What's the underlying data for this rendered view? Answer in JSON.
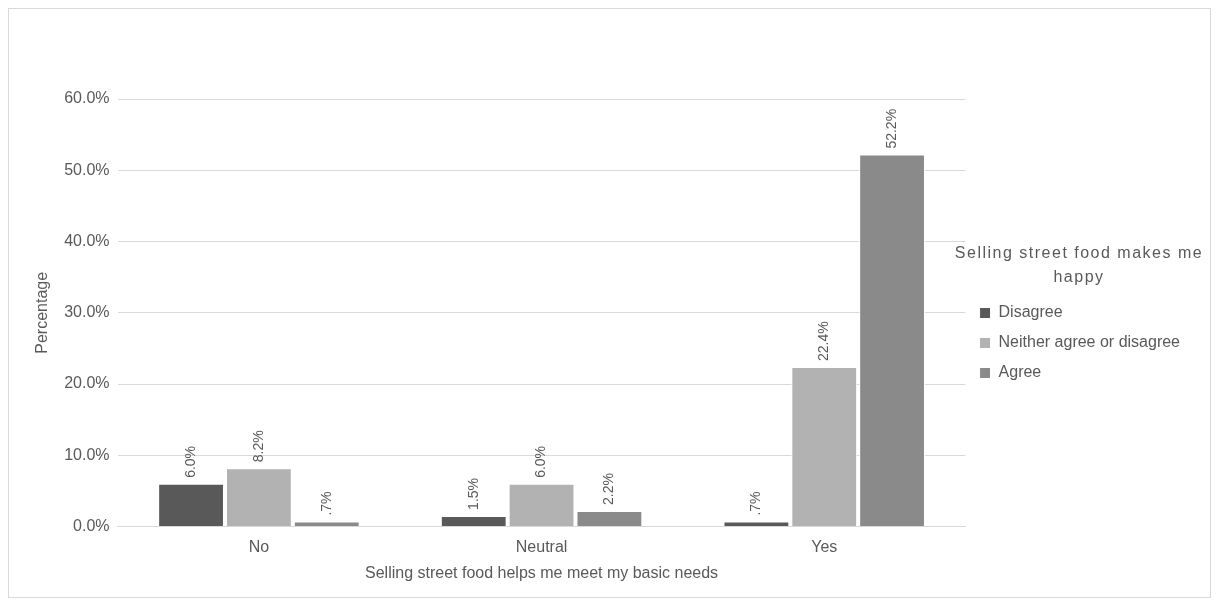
{
  "chart_data": {
    "type": "bar",
    "xlabel": "Selling street food helps me meet my basic needs",
    "ylabel": "Percentage",
    "legend_title": "Selling street food makes me happy",
    "categories": [
      "No",
      "Neutral",
      "Yes"
    ],
    "series": [
      {
        "name": "Disagree",
        "color": "#595959",
        "values": [
          6.0,
          1.5,
          0.7
        ],
        "value_labels": [
          "6.0%",
          "1.5%",
          ".7%"
        ]
      },
      {
        "name": "Neither agree or disagree",
        "color": "#b2b2b2",
        "values": [
          8.2,
          6.0,
          22.4
        ],
        "value_labels": [
          "8.2%",
          "6.0%",
          "22.4%"
        ]
      },
      {
        "name": "Agree",
        "color": "#8a8a8a",
        "values": [
          0.7,
          2.2,
          52.2
        ],
        "value_labels": [
          ".7%",
          "2.2%",
          "52.2%"
        ]
      }
    ],
    "ylim": [
      0,
      60
    ],
    "yticks": [
      {
        "value": 0,
        "label": "0.0%"
      },
      {
        "value": 10,
        "label": "10.0%"
      },
      {
        "value": 20,
        "label": "20.0%"
      },
      {
        "value": 30,
        "label": "30.0%"
      },
      {
        "value": 40,
        "label": "40.0%"
      },
      {
        "value": 50,
        "label": "50.0%"
      },
      {
        "value": 60,
        "label": "60.0%"
      }
    ],
    "grid": "y",
    "legend": "right"
  }
}
